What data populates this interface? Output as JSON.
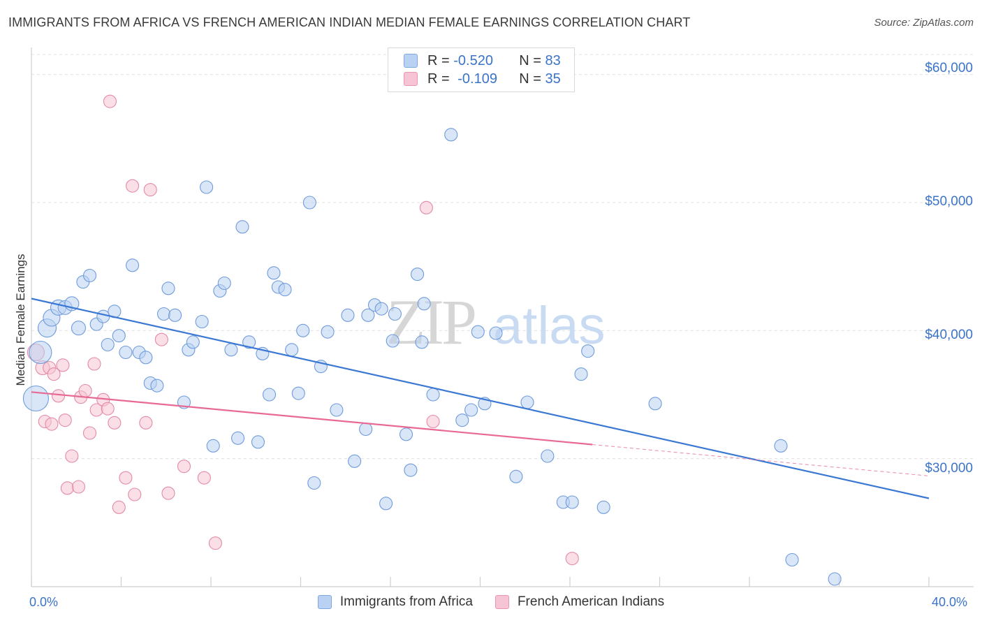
{
  "title": "IMMIGRANTS FROM AFRICA VS FRENCH AMERICAN INDIAN MEDIAN FEMALE EARNINGS CORRELATION CHART",
  "source": "Source: ZipAtlas.com",
  "watermark": "ZIPatlas",
  "colors": {
    "blue": "#3b78d4",
    "blue_fill": "#b9d2f3",
    "pink": "#e86a94",
    "pink_fill": "#f6c4d4",
    "axis_text": "#3b73c8"
  },
  "legend": {
    "row1": {
      "r_label": "R =",
      "r_value": "-0.520",
      "n_label": "N =",
      "n_value": "83"
    },
    "row2": {
      "r_label": "R =",
      "r_value": "-0.109",
      "n_label": "N =",
      "n_value": "35"
    }
  },
  "chart_data": {
    "type": "scatter",
    "title": "IMMIGRANTS FROM AFRICA VS FRENCH AMERICAN INDIAN MEDIAN FEMALE EARNINGS CORRELATION CHART",
    "xlabel": "",
    "ylabel": "Median Female Earnings",
    "xlim": [
      0,
      40
    ],
    "ylim": [
      20000,
      62000
    ],
    "x_tick_labels": [
      "0.0%",
      "40.0%"
    ],
    "y_ticks": [
      30000,
      40000,
      50000,
      60000
    ],
    "y_tick_labels": [
      "$30,000",
      "$40,000",
      "$50,000",
      "$60,000"
    ],
    "grid": "horizontal dashed",
    "legend_position": "bottom",
    "series": [
      {
        "name": "Immigrants from Africa",
        "color": "#3b78d4",
        "trend": {
          "x": [
            0,
            40
          ],
          "y": [
            42500,
            26900
          ]
        },
        "points": [
          [
            0.2,
            34700,
            18
          ],
          [
            0.4,
            38300,
            16
          ],
          [
            0.7,
            40200,
            13
          ],
          [
            0.9,
            41000,
            12
          ],
          [
            1.2,
            41800,
            11
          ],
          [
            1.5,
            41800,
            10
          ],
          [
            1.8,
            42100,
            10
          ],
          [
            2.1,
            40200,
            10
          ],
          [
            2.3,
            43800,
            9
          ],
          [
            2.6,
            44300,
            9
          ],
          [
            2.9,
            40500,
            9
          ],
          [
            3.2,
            41100,
            9
          ],
          [
            3.4,
            38900,
            9
          ],
          [
            3.7,
            41500,
            9
          ],
          [
            3.9,
            39600,
            9
          ],
          [
            4.2,
            38300,
            9
          ],
          [
            4.5,
            45100,
            9
          ],
          [
            4.8,
            38300,
            9
          ],
          [
            5.1,
            37900,
            9
          ],
          [
            5.3,
            35900,
            9
          ],
          [
            5.6,
            35700,
            9
          ],
          [
            5.9,
            41300,
            9
          ],
          [
            6.1,
            43300,
            9
          ],
          [
            6.4,
            41200,
            9
          ],
          [
            6.8,
            34400,
            9
          ],
          [
            7.0,
            38500,
            9
          ],
          [
            7.2,
            39100,
            9
          ],
          [
            7.6,
            40700,
            9
          ],
          [
            7.8,
            51200,
            9
          ],
          [
            8.1,
            31000,
            9
          ],
          [
            8.4,
            43100,
            9
          ],
          [
            8.6,
            43700,
            9
          ],
          [
            8.9,
            38500,
            9
          ],
          [
            9.2,
            31600,
            9
          ],
          [
            9.4,
            48100,
            9
          ],
          [
            9.7,
            39100,
            9
          ],
          [
            10.1,
            31300,
            9
          ],
          [
            10.3,
            38200,
            9
          ],
          [
            10.6,
            35000,
            9
          ],
          [
            10.8,
            44500,
            9
          ],
          [
            11.0,
            43400,
            9
          ],
          [
            11.3,
            43200,
            9
          ],
          [
            11.6,
            38500,
            9
          ],
          [
            11.9,
            35100,
            9
          ],
          [
            12.1,
            40000,
            9
          ],
          [
            12.4,
            50000,
            9
          ],
          [
            12.6,
            28100,
            9
          ],
          [
            12.9,
            37200,
            9
          ],
          [
            13.2,
            39900,
            9
          ],
          [
            13.6,
            33800,
            9
          ],
          [
            14.1,
            41200,
            9
          ],
          [
            14.4,
            29800,
            9
          ],
          [
            14.9,
            32300,
            9
          ],
          [
            15.0,
            41200,
            9
          ],
          [
            15.3,
            42000,
            9
          ],
          [
            15.6,
            41700,
            9
          ],
          [
            15.8,
            26500,
            9
          ],
          [
            16.2,
            41300,
            9
          ],
          [
            16.1,
            39200,
            9
          ],
          [
            16.7,
            31900,
            9
          ],
          [
            16.9,
            29100,
            9
          ],
          [
            17.2,
            44400,
            9
          ],
          [
            17.5,
            42100,
            9
          ],
          [
            17.4,
            39100,
            9
          ],
          [
            17.9,
            35000,
            9
          ],
          [
            18.7,
            55300,
            9
          ],
          [
            19.2,
            33000,
            9
          ],
          [
            19.6,
            33800,
            9
          ],
          [
            19.9,
            39900,
            9
          ],
          [
            20.2,
            34300,
            9
          ],
          [
            20.7,
            39800,
            9
          ],
          [
            21.6,
            28600,
            9
          ],
          [
            22.1,
            34400,
            9
          ],
          [
            23.0,
            30200,
            9
          ],
          [
            23.7,
            26600,
            9
          ],
          [
            24.1,
            26600,
            9
          ],
          [
            24.5,
            36600,
            9
          ],
          [
            24.8,
            38400,
            9
          ],
          [
            25.5,
            26200,
            9
          ],
          [
            27.8,
            34300,
            9
          ],
          [
            33.4,
            31000,
            9
          ],
          [
            33.9,
            22100,
            9
          ],
          [
            35.8,
            20600,
            9
          ]
        ]
      },
      {
        "name": "French American Indians",
        "color": "#e86a94",
        "trend": {
          "x": [
            0,
            25
          ],
          "y": [
            35200,
            31100
          ]
        },
        "trend_dashed": {
          "x": [
            25,
            40
          ],
          "y": [
            31100,
            28650
          ]
        },
        "points": [
          [
            0.2,
            38300,
            12
          ],
          [
            0.5,
            37100,
            10
          ],
          [
            0.6,
            32900,
            9
          ],
          [
            0.8,
            37100,
            9
          ],
          [
            0.9,
            32700,
            9
          ],
          [
            1.0,
            36600,
            9
          ],
          [
            1.2,
            34900,
            9
          ],
          [
            1.4,
            37300,
            9
          ],
          [
            1.5,
            33000,
            9
          ],
          [
            1.6,
            27700,
            9
          ],
          [
            1.8,
            30200,
            9
          ],
          [
            2.1,
            27800,
            9
          ],
          [
            2.2,
            34800,
            9
          ],
          [
            2.4,
            35300,
            9
          ],
          [
            2.6,
            32000,
            9
          ],
          [
            2.8,
            37400,
            9
          ],
          [
            2.9,
            33800,
            9
          ],
          [
            3.2,
            34600,
            9
          ],
          [
            3.4,
            33900,
            9
          ],
          [
            3.5,
            57900,
            9
          ],
          [
            3.7,
            32800,
            9
          ],
          [
            3.9,
            26200,
            9
          ],
          [
            4.2,
            28500,
            9
          ],
          [
            4.5,
            51300,
            9
          ],
          [
            4.6,
            27200,
            9
          ],
          [
            5.1,
            32800,
            9
          ],
          [
            5.3,
            51000,
            9
          ],
          [
            5.8,
            39300,
            9
          ],
          [
            6.1,
            27300,
            9
          ],
          [
            6.8,
            29400,
            9
          ],
          [
            7.7,
            28500,
            9
          ],
          [
            8.2,
            23400,
            9
          ],
          [
            17.6,
            49600,
            9
          ],
          [
            17.9,
            32900,
            9
          ],
          [
            24.1,
            22200,
            9
          ]
        ]
      }
    ]
  }
}
